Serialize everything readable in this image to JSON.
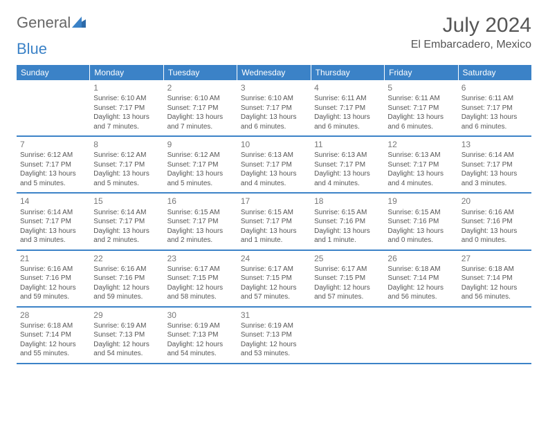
{
  "logo": {
    "text1": "General",
    "text2": "Blue"
  },
  "title": "July 2024",
  "location": "El Embarcadero, Mexico",
  "colors": {
    "header_bg": "#3b82c7",
    "header_text": "#ffffff",
    "text": "#555555",
    "border": "#3b82c7"
  },
  "day_names": [
    "Sunday",
    "Monday",
    "Tuesday",
    "Wednesday",
    "Thursday",
    "Friday",
    "Saturday"
  ],
  "weeks": [
    [
      {
        "n": "",
        "sr": "",
        "ss": "",
        "dl": ""
      },
      {
        "n": "1",
        "sr": "Sunrise: 6:10 AM",
        "ss": "Sunset: 7:17 PM",
        "dl": "Daylight: 13 hours and 7 minutes."
      },
      {
        "n": "2",
        "sr": "Sunrise: 6:10 AM",
        "ss": "Sunset: 7:17 PM",
        "dl": "Daylight: 13 hours and 7 minutes."
      },
      {
        "n": "3",
        "sr": "Sunrise: 6:10 AM",
        "ss": "Sunset: 7:17 PM",
        "dl": "Daylight: 13 hours and 6 minutes."
      },
      {
        "n": "4",
        "sr": "Sunrise: 6:11 AM",
        "ss": "Sunset: 7:17 PM",
        "dl": "Daylight: 13 hours and 6 minutes."
      },
      {
        "n": "5",
        "sr": "Sunrise: 6:11 AM",
        "ss": "Sunset: 7:17 PM",
        "dl": "Daylight: 13 hours and 6 minutes."
      },
      {
        "n": "6",
        "sr": "Sunrise: 6:11 AM",
        "ss": "Sunset: 7:17 PM",
        "dl": "Daylight: 13 hours and 6 minutes."
      }
    ],
    [
      {
        "n": "7",
        "sr": "Sunrise: 6:12 AM",
        "ss": "Sunset: 7:17 PM",
        "dl": "Daylight: 13 hours and 5 minutes."
      },
      {
        "n": "8",
        "sr": "Sunrise: 6:12 AM",
        "ss": "Sunset: 7:17 PM",
        "dl": "Daylight: 13 hours and 5 minutes."
      },
      {
        "n": "9",
        "sr": "Sunrise: 6:12 AM",
        "ss": "Sunset: 7:17 PM",
        "dl": "Daylight: 13 hours and 5 minutes."
      },
      {
        "n": "10",
        "sr": "Sunrise: 6:13 AM",
        "ss": "Sunset: 7:17 PM",
        "dl": "Daylight: 13 hours and 4 minutes."
      },
      {
        "n": "11",
        "sr": "Sunrise: 6:13 AM",
        "ss": "Sunset: 7:17 PM",
        "dl": "Daylight: 13 hours and 4 minutes."
      },
      {
        "n": "12",
        "sr": "Sunrise: 6:13 AM",
        "ss": "Sunset: 7:17 PM",
        "dl": "Daylight: 13 hours and 4 minutes."
      },
      {
        "n": "13",
        "sr": "Sunrise: 6:14 AM",
        "ss": "Sunset: 7:17 PM",
        "dl": "Daylight: 13 hours and 3 minutes."
      }
    ],
    [
      {
        "n": "14",
        "sr": "Sunrise: 6:14 AM",
        "ss": "Sunset: 7:17 PM",
        "dl": "Daylight: 13 hours and 3 minutes."
      },
      {
        "n": "15",
        "sr": "Sunrise: 6:14 AM",
        "ss": "Sunset: 7:17 PM",
        "dl": "Daylight: 13 hours and 2 minutes."
      },
      {
        "n": "16",
        "sr": "Sunrise: 6:15 AM",
        "ss": "Sunset: 7:17 PM",
        "dl": "Daylight: 13 hours and 2 minutes."
      },
      {
        "n": "17",
        "sr": "Sunrise: 6:15 AM",
        "ss": "Sunset: 7:17 PM",
        "dl": "Daylight: 13 hours and 1 minute."
      },
      {
        "n": "18",
        "sr": "Sunrise: 6:15 AM",
        "ss": "Sunset: 7:16 PM",
        "dl": "Daylight: 13 hours and 1 minute."
      },
      {
        "n": "19",
        "sr": "Sunrise: 6:15 AM",
        "ss": "Sunset: 7:16 PM",
        "dl": "Daylight: 13 hours and 0 minutes."
      },
      {
        "n": "20",
        "sr": "Sunrise: 6:16 AM",
        "ss": "Sunset: 7:16 PM",
        "dl": "Daylight: 13 hours and 0 minutes."
      }
    ],
    [
      {
        "n": "21",
        "sr": "Sunrise: 6:16 AM",
        "ss": "Sunset: 7:16 PM",
        "dl": "Daylight: 12 hours and 59 minutes."
      },
      {
        "n": "22",
        "sr": "Sunrise: 6:16 AM",
        "ss": "Sunset: 7:16 PM",
        "dl": "Daylight: 12 hours and 59 minutes."
      },
      {
        "n": "23",
        "sr": "Sunrise: 6:17 AM",
        "ss": "Sunset: 7:15 PM",
        "dl": "Daylight: 12 hours and 58 minutes."
      },
      {
        "n": "24",
        "sr": "Sunrise: 6:17 AM",
        "ss": "Sunset: 7:15 PM",
        "dl": "Daylight: 12 hours and 57 minutes."
      },
      {
        "n": "25",
        "sr": "Sunrise: 6:17 AM",
        "ss": "Sunset: 7:15 PM",
        "dl": "Daylight: 12 hours and 57 minutes."
      },
      {
        "n": "26",
        "sr": "Sunrise: 6:18 AM",
        "ss": "Sunset: 7:14 PM",
        "dl": "Daylight: 12 hours and 56 minutes."
      },
      {
        "n": "27",
        "sr": "Sunrise: 6:18 AM",
        "ss": "Sunset: 7:14 PM",
        "dl": "Daylight: 12 hours and 56 minutes."
      }
    ],
    [
      {
        "n": "28",
        "sr": "Sunrise: 6:18 AM",
        "ss": "Sunset: 7:14 PM",
        "dl": "Daylight: 12 hours and 55 minutes."
      },
      {
        "n": "29",
        "sr": "Sunrise: 6:19 AM",
        "ss": "Sunset: 7:13 PM",
        "dl": "Daylight: 12 hours and 54 minutes."
      },
      {
        "n": "30",
        "sr": "Sunrise: 6:19 AM",
        "ss": "Sunset: 7:13 PM",
        "dl": "Daylight: 12 hours and 54 minutes."
      },
      {
        "n": "31",
        "sr": "Sunrise: 6:19 AM",
        "ss": "Sunset: 7:13 PM",
        "dl": "Daylight: 12 hours and 53 minutes."
      },
      {
        "n": "",
        "sr": "",
        "ss": "",
        "dl": ""
      },
      {
        "n": "",
        "sr": "",
        "ss": "",
        "dl": ""
      },
      {
        "n": "",
        "sr": "",
        "ss": "",
        "dl": ""
      }
    ]
  ]
}
